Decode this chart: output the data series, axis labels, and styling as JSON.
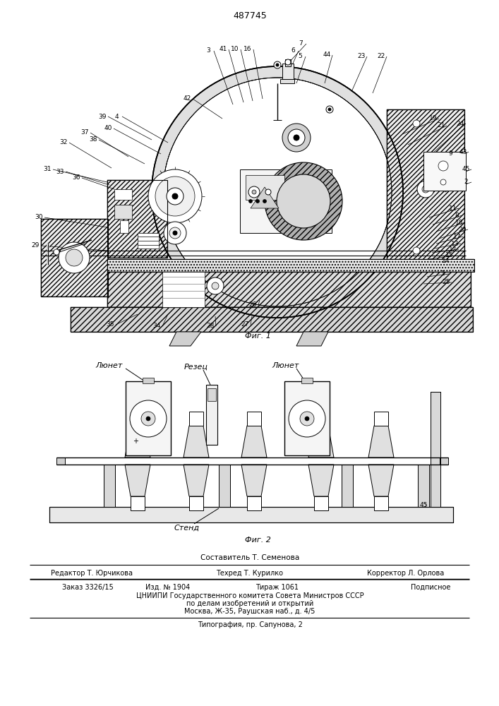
{
  "patent_number": "487745",
  "fig1_caption": "Фиг. 1",
  "fig2_caption": "Фиг. 2",
  "fig2_label_lunet_left": "Люнет",
  "fig2_label_rezer": "Резец",
  "fig2_label_lunet_right": "Люнет",
  "fig2_label_stend": "Стенд",
  "fig2_label_45": "45",
  "footer_sostavitel": "Составитель Т. Семенова",
  "footer_line1_col1": "Редактор Т. Юрчикова",
  "footer_line1_col2": "Техред Т. Курилко",
  "footer_line1_col3": "Корректор Л. Орлова",
  "footer_line2_col1": "Заказ 3326/15",
  "footer_line2_col2": "Изд. № 1904",
  "footer_line2_col3": "Тираж 1061",
  "footer_line2_col4": "Подписное",
  "footer_line3": "ЦНИИПИ Государственного комитета Совета Министров СССР",
  "footer_line4": "по делам изобретений и открытий",
  "footer_line5": "Москва, Ж-35, Раушская наб., д. 4/5",
  "footer_line6": "Типография, пр. Сапунова, 2",
  "bg_color": "#ffffff"
}
